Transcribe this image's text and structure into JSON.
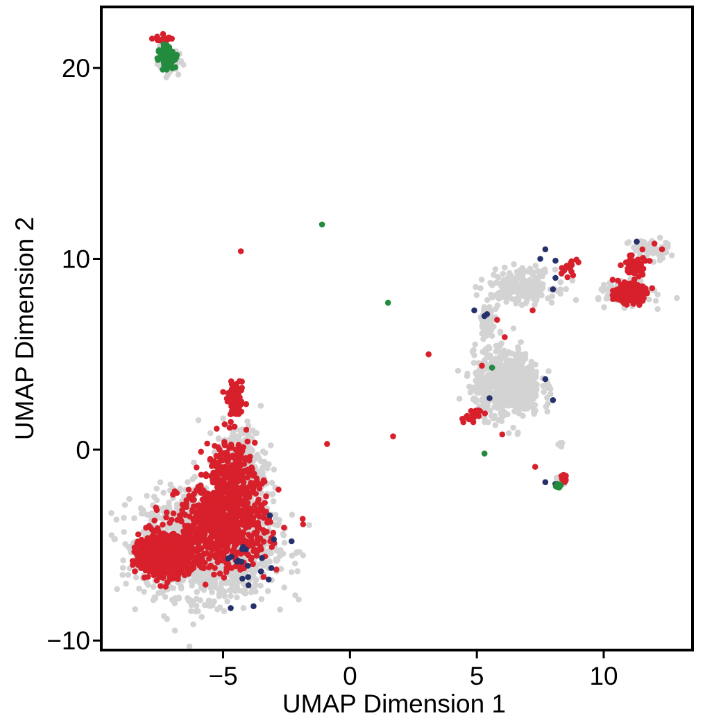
{
  "chart_data": {
    "type": "scatter",
    "title": "",
    "xlabel": "UMAP Dimension 1",
    "ylabel": "UMAP Dimension 2",
    "xlim": [
      -9.8,
      13.5
    ],
    "ylim": [
      -10.5,
      23.2
    ],
    "x_ticks": [
      -5,
      0,
      5,
      10
    ],
    "y_ticks": [
      -10,
      0,
      10,
      20
    ],
    "x_tick_labels": [
      "−5",
      "0",
      "5",
      "10"
    ],
    "y_tick_labels": [
      "−10",
      "0",
      "10",
      "20"
    ],
    "grid": false,
    "legend": "none",
    "colors": {
      "background_cells": "#d3d3d3",
      "red": "#d7202b",
      "navy": "#26316b",
      "green": "#238b3e"
    },
    "series": [
      {
        "color_key": "background_cells",
        "clusters": [
          {
            "center": [
              -5.6,
              -5.0
            ],
            "spread": [
              2.3,
              2.4
            ],
            "count": 1800
          },
          {
            "center": [
              -4.3,
              -1.0
            ],
            "spread": [
              0.9,
              2.2
            ],
            "count": 300
          },
          {
            "center": [
              -7.2,
              20.5
            ],
            "spread": [
              0.35,
              0.6
            ],
            "count": 120
          },
          {
            "center": [
              6.2,
              3.4
            ],
            "spread": [
              1.2,
              1.5
            ],
            "count": 700
          },
          {
            "center": [
              6.8,
              8.6
            ],
            "spread": [
              1.2,
              0.8
            ],
            "count": 220
          },
          {
            "center": [
              5.4,
              6.6
            ],
            "spread": [
              0.35,
              1.0
            ],
            "count": 60
          },
          {
            "center": [
              11.0,
              8.2
            ],
            "spread": [
              0.8,
              0.5
            ],
            "count": 220
          },
          {
            "center": [
              11.8,
              10.5
            ],
            "spread": [
              0.7,
              0.5
            ],
            "count": 60
          },
          {
            "center": [
              8.3,
              -1.6
            ],
            "spread": [
              0.2,
              0.2
            ],
            "count": 40
          },
          {
            "center": [
              8.3,
              0.3
            ],
            "spread": [
              0.1,
              0.1
            ],
            "count": 6
          }
        ]
      },
      {
        "color_key": "red",
        "clusters": [
          {
            "center": [
              -7.3,
              -5.5
            ],
            "spread": [
              0.9,
              0.9
            ],
            "count": 900
          },
          {
            "center": [
              -5.0,
              -4.0
            ],
            "spread": [
              1.6,
              2.0
            ],
            "count": 700
          },
          {
            "center": [
              -4.5,
              2.5
            ],
            "spread": [
              0.3,
              0.8
            ],
            "count": 80
          },
          {
            "center": [
              -4.7,
              -1.5
            ],
            "spread": [
              0.9,
              2.0
            ],
            "count": 250
          },
          {
            "center": [
              11.0,
              8.2
            ],
            "spread": [
              0.5,
              0.4
            ],
            "count": 320
          },
          {
            "center": [
              11.2,
              9.6
            ],
            "spread": [
              0.4,
              0.6
            ],
            "count": 50
          },
          {
            "center": [
              8.4,
              -1.5
            ],
            "spread": [
              0.15,
              0.15
            ],
            "count": 18
          },
          {
            "center": [
              -7.3,
              21.5
            ],
            "spread": [
              0.3,
              0.2
            ],
            "count": 18
          },
          {
            "center": [
              4.8,
              1.8
            ],
            "spread": [
              0.4,
              0.4
            ],
            "count": 20
          },
          {
            "center": [
              8.6,
              9.4
            ],
            "spread": [
              0.4,
              0.6
            ],
            "count": 14
          }
        ],
        "points": [
          [
            -4.3,
            10.4
          ],
          [
            3.1,
            5.0
          ],
          [
            1.7,
            0.7
          ],
          [
            -0.9,
            0.3
          ],
          [
            5.2,
            4.4
          ],
          [
            6.1,
            5.9
          ],
          [
            7.3,
            -0.9
          ],
          [
            6.0,
            0.8
          ],
          [
            5.8,
            6.8
          ],
          [
            7.2,
            7.3
          ],
          [
            12.3,
            10.5
          ],
          [
            12.0,
            10.8
          ]
        ]
      },
      {
        "color_key": "navy",
        "clusters": [
          {
            "center": [
              -4.0,
              -5.8
            ],
            "spread": [
              0.8,
              1.0
            ],
            "count": 14
          }
        ],
        "points": [
          [
            -4.8,
            -5.7
          ],
          [
            -3.0,
            -4.7
          ],
          [
            -2.3,
            -4.8
          ],
          [
            -3.1,
            -6.2
          ],
          [
            -4.0,
            -7.1
          ],
          [
            -3.8,
            -8.2
          ],
          [
            -4.7,
            -8.3
          ],
          [
            7.7,
            10.5
          ],
          [
            7.5,
            10.0
          ],
          [
            8.1,
            9.9
          ],
          [
            8.1,
            9.0
          ],
          [
            8.0,
            8.4
          ],
          [
            4.9,
            7.3
          ],
          [
            5.3,
            7.0
          ],
          [
            5.4,
            7.1
          ],
          [
            5.6,
            4.3
          ],
          [
            7.7,
            3.7
          ],
          [
            8.0,
            2.6
          ],
          [
            5.5,
            2.7
          ],
          [
            7.7,
            -1.7
          ],
          [
            8.1,
            -1.8
          ],
          [
            11.3,
            10.9
          ]
        ]
      },
      {
        "color_key": "green",
        "clusters": [
          {
            "center": [
              -7.2,
              20.6
            ],
            "spread": [
              0.25,
              0.45
            ],
            "count": 160
          },
          {
            "center": [
              8.2,
              -1.9
            ],
            "spread": [
              0.15,
              0.12
            ],
            "count": 14
          }
        ],
        "points": [
          [
            -1.1,
            11.8
          ],
          [
            1.5,
            7.7
          ],
          [
            5.6,
            4.3
          ],
          [
            5.3,
            -0.2
          ]
        ]
      }
    ]
  }
}
